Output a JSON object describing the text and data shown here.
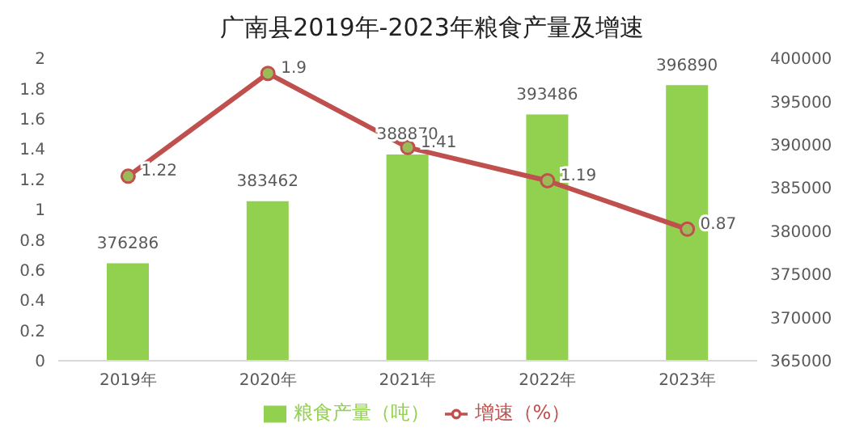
{
  "chart_data": {
    "type": "bar",
    "title": "广南县2019年-2023年粮食产量及增速",
    "categories": [
      "2019年",
      "2020年",
      "2021年",
      "2022年",
      "2023年"
    ],
    "series": [
      {
        "name": "粮食产量（吨）",
        "axis": "y2",
        "color": "#92d050",
        "values": [
          376286,
          383462,
          388870,
          393486,
          396890
        ]
      },
      {
        "name": "增速（%）",
        "type": "line",
        "axis": "y",
        "color": "#c0504d",
        "values": [
          1.22,
          1.9,
          1.41,
          1.19,
          0.87
        ]
      }
    ],
    "ylim": [
      0,
      2
    ],
    "yticks": [
      0,
      0.2,
      0.4,
      0.6,
      0.8,
      1,
      1.2,
      1.4,
      1.6,
      1.8,
      2
    ],
    "y2lim": [
      365000,
      400000
    ],
    "y2ticks": [
      365000,
      370000,
      375000,
      380000,
      385000,
      390000,
      395000,
      400000
    ],
    "data_labels": true,
    "legend": "bottom",
    "grid": false,
    "marker": "circle",
    "line_style": "solid"
  }
}
